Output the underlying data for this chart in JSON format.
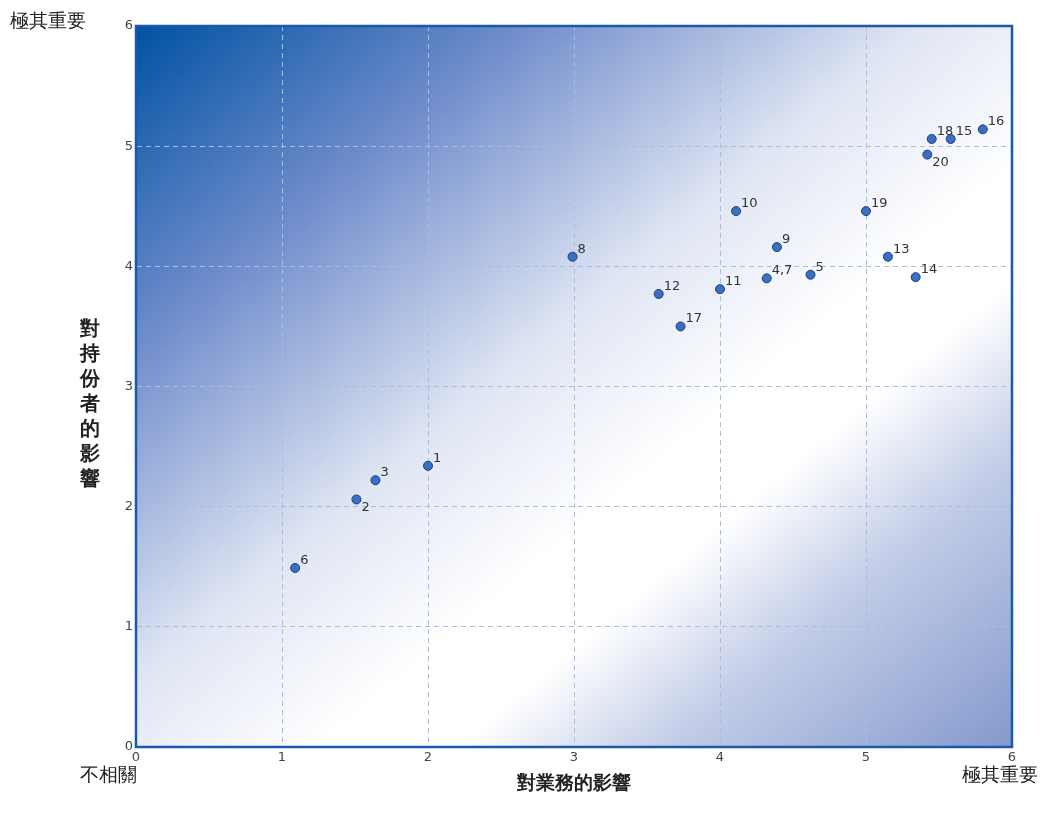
{
  "chart_data": {
    "type": "scatter",
    "xlabel": "對業務的影響",
    "ylabel": "對持份者的影響",
    "x": [
      2.0,
      1.51,
      1.64,
      4.32,
      4.62,
      1.09,
      2.99,
      4.39,
      4.11,
      4.0,
      3.58,
      5.15,
      5.34,
      5.58,
      5.8,
      3.73,
      5.45,
      5.0,
      5.42
    ],
    "values": [
      2.34,
      2.06,
      2.22,
      3.9,
      3.93,
      1.49,
      4.08,
      4.16,
      4.46,
      3.81,
      3.77,
      4.08,
      3.91,
      5.06,
      5.14,
      3.5,
      5.06,
      4.46,
      4.93
    ],
    "color": "#3a6fc4",
    "marker": "circle",
    "grid": true,
    "xlim": [
      0,
      6
    ],
    "xticks": [
      0,
      1,
      2,
      3,
      4,
      5,
      6
    ],
    "ylim": [
      0,
      6
    ],
    "yticks": [
      0,
      1,
      2,
      3,
      4,
      5,
      6
    ],
    "annotations": [
      "極其重要",
      "不相關",
      "極其重要",
      {
        "text": "1",
        "x": 2.0,
        "y": 2.34
      },
      {
        "text": "2",
        "x": 1.51,
        "y": 2.06
      },
      {
        "text": "3",
        "x": 1.64,
        "y": 2.22
      },
      {
        "text": "4,7",
        "x": 4.32,
        "y": 3.9
      },
      {
        "text": "5",
        "x": 4.62,
        "y": 3.93
      },
      {
        "text": "6",
        "x": 1.09,
        "y": 1.49
      },
      {
        "text": "8",
        "x": 2.99,
        "y": 4.08
      },
      {
        "text": "9",
        "x": 4.39,
        "y": 4.16
      },
      {
        "text": "10",
        "x": 4.11,
        "y": 4.46
      },
      {
        "text": "11",
        "x": 4.0,
        "y": 3.81
      },
      {
        "text": "12",
        "x": 3.58,
        "y": 3.77
      },
      {
        "text": "13",
        "x": 5.15,
        "y": 4.08
      },
      {
        "text": "14",
        "x": 5.34,
        "y": 3.91
      },
      {
        "text": "15",
        "x": 5.58,
        "y": 5.06
      },
      {
        "text": "16",
        "x": 5.8,
        "y": 5.14
      },
      {
        "text": "17",
        "x": 3.73,
        "y": 3.5
      },
      {
        "text": "18",
        "x": 5.45,
        "y": 5.06
      },
      {
        "text": "19",
        "x": 5.0,
        "y": 4.46
      },
      {
        "text": "20",
        "x": 5.42,
        "y": 4.93
      }
    ]
  }
}
